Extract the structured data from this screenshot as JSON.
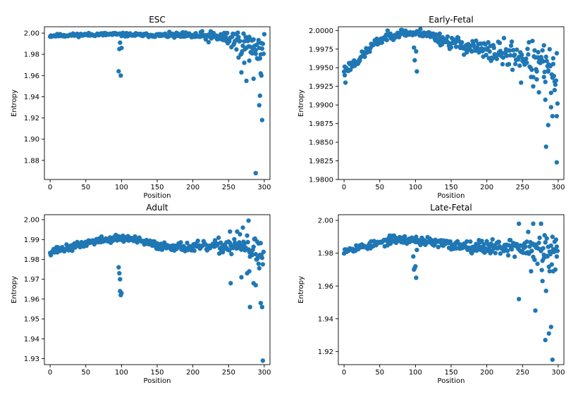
{
  "chart_data": [
    {
      "type": "scatter",
      "title": "ESC",
      "xlabel": "Position",
      "ylabel": "Entropy",
      "xlim": [
        -8,
        308
      ],
      "ylim": [
        1.862,
        2.006
      ],
      "xticks": [
        0,
        50,
        100,
        150,
        200,
        250,
        300
      ],
      "xtick_labels": [
        "0",
        "50",
        "100",
        "150",
        "200",
        "250",
        "300"
      ],
      "yticks": [
        1.88,
        1.9,
        1.92,
        1.94,
        1.96,
        1.98,
        2.0
      ],
      "ytick_labels": [
        "1.88",
        "1.90",
        "1.92",
        "1.94",
        "1.96",
        "1.98",
        "2.00"
      ],
      "color": "#1f77b4",
      "seed": 11,
      "base": [
        [
          0,
          1.9975
        ],
        [
          50,
          1.9985
        ],
        [
          90,
          1.999
        ],
        [
          100,
          1.9985
        ],
        [
          150,
          1.998
        ],
        [
          200,
          1.9975
        ],
        [
          240,
          1.996
        ],
        [
          260,
          1.993
        ],
        [
          280,
          1.988
        ],
        [
          300,
          1.984
        ]
      ],
      "noise": [
        [
          0,
          0.0012
        ],
        [
          150,
          0.0015
        ],
        [
          200,
          0.003
        ],
        [
          240,
          0.005
        ],
        [
          260,
          0.009
        ],
        [
          300,
          0.012
        ]
      ],
      "extra": [
        [
          96,
          1.964
        ],
        [
          99,
          1.96
        ],
        [
          97,
          1.985
        ],
        [
          100,
          1.986
        ],
        [
          98,
          1.991
        ],
        [
          288,
          1.868
        ],
        [
          297,
          1.918
        ],
        [
          293,
          1.932
        ],
        [
          294,
          1.941
        ],
        [
          295,
          1.962
        ],
        [
          296,
          1.96
        ],
        [
          275,
          1.955
        ],
        [
          285,
          1.957
        ],
        [
          268,
          1.963
        ],
        [
          272,
          1.972
        ],
        [
          279,
          1.974
        ],
        [
          288,
          1.984
        ],
        [
          292,
          1.991
        ],
        [
          283,
          1.993
        ],
        [
          300,
          1.999
        ],
        [
          264,
          1.977
        ],
        [
          278,
          1.996
        ]
      ]
    },
    {
      "type": "scatter",
      "title": "Early-Fetal",
      "xlabel": "Position",
      "ylabel": "Entropy",
      "xlim": [
        -8,
        308
      ],
      "ylim": [
        1.98,
        2.0005
      ],
      "xticks": [
        0,
        50,
        100,
        150,
        200,
        250,
        300
      ],
      "xtick_labels": [
        "0",
        "50",
        "100",
        "150",
        "200",
        "250",
        "300"
      ],
      "yticks": [
        1.98,
        1.9825,
        1.985,
        1.9875,
        1.99,
        1.9925,
        1.995,
        1.9975,
        2.0
      ],
      "ytick_labels": [
        "1.9800",
        "1.9825",
        "1.9850",
        "1.9875",
        "1.9900",
        "1.9925",
        "1.9950",
        "1.9975",
        "2.0000"
      ],
      "color": "#1f77b4",
      "seed": 23,
      "base": [
        [
          0,
          1.9947
        ],
        [
          20,
          1.996
        ],
        [
          40,
          1.998
        ],
        [
          60,
          1.9992
        ],
        [
          80,
          1.9997
        ],
        [
          100,
          1.9996
        ],
        [
          110,
          1.9997
        ],
        [
          150,
          1.9984
        ],
        [
          200,
          1.9972
        ],
        [
          250,
          1.9965
        ],
        [
          280,
          1.995
        ],
        [
          300,
          1.9935
        ]
      ],
      "noise": [
        [
          0,
          0.0006
        ],
        [
          100,
          0.0004
        ],
        [
          150,
          0.0008
        ],
        [
          200,
          0.0012
        ],
        [
          250,
          0.0018
        ],
        [
          300,
          0.003
        ]
      ],
      "extra": [
        [
          98,
          1.9977
        ],
        [
          99,
          1.996
        ],
        [
          101,
          1.9972
        ],
        [
          102,
          1.9945
        ],
        [
          2,
          1.993
        ],
        [
          1,
          1.994
        ],
        [
          283,
          1.9844
        ],
        [
          286,
          1.9873
        ],
        [
          292,
          1.9885
        ],
        [
          298,
          1.9885
        ],
        [
          298,
          1.9823
        ],
        [
          290,
          1.9897
        ],
        [
          282,
          1.9907
        ],
        [
          295,
          1.992
        ],
        [
          273,
          1.9917
        ],
        [
          265,
          1.9925
        ],
        [
          286,
          1.9945
        ],
        [
          293,
          1.9955
        ],
        [
          248,
          1.993
        ],
        [
          270,
          1.9945
        ],
        [
          280,
          1.998
        ]
      ]
    },
    {
      "type": "scatter",
      "title": "Adult",
      "xlabel": "Position",
      "ylabel": "Entropy",
      "xlim": [
        -8,
        308
      ],
      "ylim": [
        1.927,
        2.0025
      ],
      "xticks": [
        0,
        50,
        100,
        150,
        200,
        250,
        300
      ],
      "xtick_labels": [
        "0",
        "50",
        "100",
        "150",
        "200",
        "250",
        "300"
      ],
      "yticks": [
        1.93,
        1.94,
        1.95,
        1.96,
        1.97,
        1.98,
        1.99,
        2.0
      ],
      "ytick_labels": [
        "1.93",
        "1.94",
        "1.95",
        "1.96",
        "1.97",
        "1.98",
        "1.99",
        "2.00"
      ],
      "color": "#1f77b4",
      "seed": 37,
      "base": [
        [
          0,
          1.984
        ],
        [
          30,
          1.986
        ],
        [
          60,
          1.989
        ],
        [
          90,
          1.9905
        ],
        [
          110,
          1.9905
        ],
        [
          150,
          1.987
        ],
        [
          200,
          1.986
        ],
        [
          230,
          1.9865
        ],
        [
          260,
          1.987
        ],
        [
          280,
          1.985
        ],
        [
          300,
          1.982
        ]
      ],
      "noise": [
        [
          0,
          0.0015
        ],
        [
          100,
          0.0015
        ],
        [
          200,
          0.002
        ],
        [
          240,
          0.003
        ],
        [
          280,
          0.006
        ],
        [
          300,
          0.008
        ]
      ],
      "extra": [
        [
          96,
          1.976
        ],
        [
          97,
          1.973
        ],
        [
          98,
          1.97
        ],
        [
          98,
          1.964
        ],
        [
          99,
          1.962
        ],
        [
          100,
          1.963
        ],
        [
          253,
          1.968
        ],
        [
          280,
          1.956
        ],
        [
          295,
          1.958
        ],
        [
          297,
          1.956
        ],
        [
          298,
          1.929
        ],
        [
          285,
          1.968
        ],
        [
          288,
          1.967
        ],
        [
          276,
          1.973
        ],
        [
          279,
          1.974
        ],
        [
          268,
          1.971
        ],
        [
          278,
          1.9995
        ],
        [
          270,
          1.996
        ],
        [
          262,
          1.994
        ],
        [
          290,
          1.989
        ],
        [
          292,
          1.988
        ],
        [
          252,
          1.994
        ]
      ]
    },
    {
      "type": "scatter",
      "title": "Late-Fetal",
      "xlabel": "Position",
      "ylabel": "Entropy",
      "xlim": [
        -8,
        308
      ],
      "ylim": [
        1.912,
        2.0035
      ],
      "xticks": [
        0,
        50,
        100,
        150,
        200,
        250,
        300
      ],
      "xtick_labels": [
        "0",
        "50",
        "100",
        "150",
        "200",
        "250",
        "300"
      ],
      "yticks": [
        1.92,
        1.94,
        1.96,
        1.98,
        2.0
      ],
      "ytick_labels": [
        "1.92",
        "1.94",
        "1.96",
        "1.98",
        "2.00"
      ],
      "color": "#1f77b4",
      "seed": 53,
      "base": [
        [
          0,
          1.982
        ],
        [
          40,
          1.985
        ],
        [
          70,
          1.9885
        ],
        [
          100,
          1.988
        ],
        [
          150,
          1.985
        ],
        [
          200,
          1.984
        ],
        [
          240,
          1.984
        ],
        [
          270,
          1.981
        ],
        [
          300,
          1.979
        ]
      ],
      "noise": [
        [
          0,
          0.0018
        ],
        [
          100,
          0.0022
        ],
        [
          200,
          0.0035
        ],
        [
          240,
          0.005
        ],
        [
          270,
          0.008
        ],
        [
          300,
          0.009
        ]
      ],
      "extra": [
        [
          98,
          1.97
        ],
        [
          99,
          1.971
        ],
        [
          100,
          1.972
        ],
        [
          101,
          1.965
        ],
        [
          97,
          1.978
        ],
        [
          102,
          1.982
        ],
        [
          245,
          1.952
        ],
        [
          268,
          1.945
        ],
        [
          282,
          1.927
        ],
        [
          287,
          1.931
        ],
        [
          290,
          1.935
        ],
        [
          292,
          1.915
        ],
        [
          283,
          1.957
        ],
        [
          278,
          1.963
        ],
        [
          262,
          1.969
        ],
        [
          296,
          1.97
        ],
        [
          293,
          1.969
        ],
        [
          288,
          1.969
        ],
        [
          280,
          1.979
        ],
        [
          276,
          1.998
        ],
        [
          284,
          1.989
        ],
        [
          295,
          1.987
        ],
        [
          265,
          1.998
        ],
        [
          245,
          1.998
        ],
        [
          258,
          1.993
        ],
        [
          298,
          1.984
        ]
      ]
    }
  ]
}
